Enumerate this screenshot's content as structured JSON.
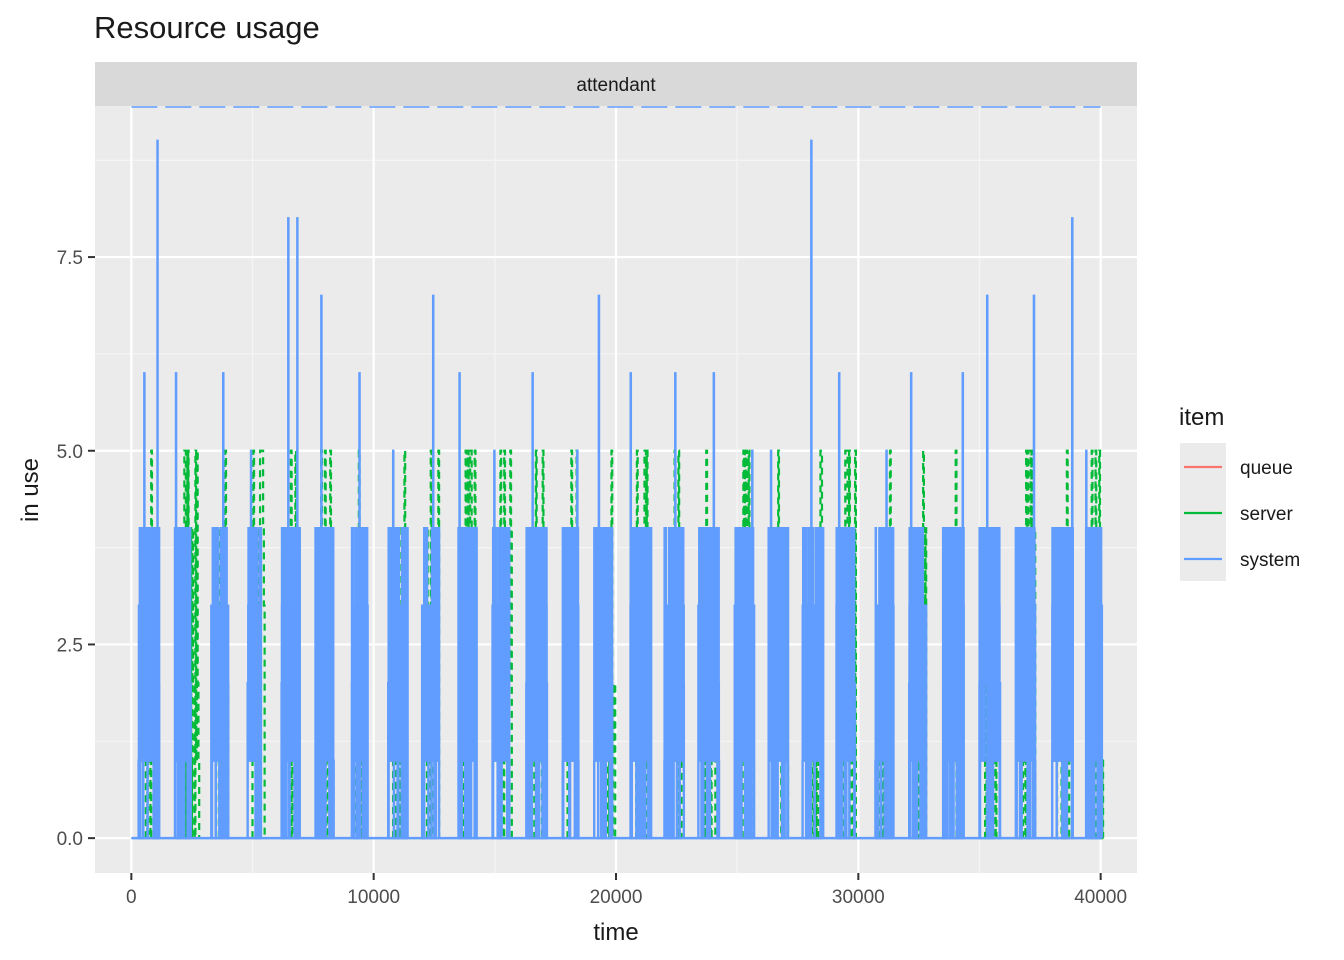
{
  "chart_data": {
    "type": "line",
    "title": "Resource usage",
    "facet_label": "attendant",
    "xlabel": "time",
    "ylabel": "in use",
    "xlim": [
      -1500,
      41500
    ],
    "ylim": [
      -0.45,
      9.45
    ],
    "x_ticks": [
      0,
      10000,
      20000,
      30000,
      40000
    ],
    "x_tick_labels": [
      "0",
      "10000",
      "20000",
      "30000",
      "40000"
    ],
    "y_ticks": [
      0,
      2.5,
      5,
      7.5
    ],
    "y_tick_labels": [
      "0.0",
      "2.5",
      "5.0",
      "7.5"
    ],
    "legend_title": "item",
    "legend_position": "right",
    "grid": true,
    "reference_lines": {
      "server_capacity": 5,
      "system_limit": "Inf"
    },
    "series": [
      {
        "name": "queue",
        "color": "#F8766D",
        "values": []
      },
      {
        "name": "server",
        "color": "#00BA38",
        "style": "dashed",
        "bursts": [
          {
            "x": 600,
            "peak": 5
          },
          {
            "x": 2000,
            "peak": 5
          },
          {
            "x": 2300,
            "peak": 5
          },
          {
            "x": 3500,
            "peak": 5
          },
          {
            "x": 5000,
            "peak": 5
          },
          {
            "x": 6300,
            "peak": 5
          },
          {
            "x": 7800,
            "peak": 5
          },
          {
            "x": 9200,
            "peak": 5
          },
          {
            "x": 10800,
            "peak": 5
          },
          {
            "x": 12200,
            "peak": 5
          },
          {
            "x": 13700,
            "peak": 5
          },
          {
            "x": 15200,
            "peak": 5
          },
          {
            "x": 16600,
            "peak": 5
          },
          {
            "x": 18000,
            "peak": 5
          },
          {
            "x": 19500,
            "peak": 5
          },
          {
            "x": 20800,
            "peak": 5
          },
          {
            "x": 22200,
            "peak": 5
          },
          {
            "x": 23600,
            "peak": 5
          },
          {
            "x": 25100,
            "peak": 5
          },
          {
            "x": 26600,
            "peak": 5
          },
          {
            "x": 28000,
            "peak": 5
          },
          {
            "x": 29400,
            "peak": 5
          },
          {
            "x": 30900,
            "peak": 5
          },
          {
            "x": 32300,
            "peak": 5
          },
          {
            "x": 33800,
            "peak": 5
          },
          {
            "x": 35200,
            "peak": 5
          },
          {
            "x": 36800,
            "peak": 5
          },
          {
            "x": 38200,
            "peak": 5
          },
          {
            "x": 39600,
            "peak": 5
          }
        ]
      },
      {
        "name": "system",
        "color": "#619CFF",
        "bursts": [
          {
            "x": 300,
            "w": 800,
            "peak": 6
          },
          {
            "x": 1000,
            "w": 150,
            "peak": 9
          },
          {
            "x": 1800,
            "w": 650,
            "peak": 6
          },
          {
            "x": 3300,
            "w": 700,
            "peak": 6
          },
          {
            "x": 4800,
            "w": 550,
            "peak": 5
          },
          {
            "x": 6200,
            "w": 700,
            "peak": 8
          },
          {
            "x": 6800,
            "w": 150,
            "peak": 8
          },
          {
            "x": 7600,
            "w": 750,
            "peak": 7
          },
          {
            "x": 9100,
            "w": 650,
            "peak": 6
          },
          {
            "x": 10600,
            "w": 800,
            "peak": 5
          },
          {
            "x": 12000,
            "w": 700,
            "peak": 7
          },
          {
            "x": 13500,
            "w": 750,
            "peak": 6
          },
          {
            "x": 14900,
            "w": 700,
            "peak": 5
          },
          {
            "x": 16300,
            "w": 850,
            "peak": 6
          },
          {
            "x": 17800,
            "w": 650,
            "peak": 5
          },
          {
            "x": 19100,
            "w": 750,
            "peak": 7
          },
          {
            "x": 20600,
            "w": 850,
            "peak": 6
          },
          {
            "x": 22000,
            "w": 800,
            "peak": 6
          },
          {
            "x": 23400,
            "w": 850,
            "peak": 6
          },
          {
            "x": 24900,
            "w": 800,
            "peak": 5
          },
          {
            "x": 26300,
            "w": 800,
            "peak": 5
          },
          {
            "x": 27700,
            "w": 850,
            "peak": 9
          },
          {
            "x": 29100,
            "w": 750,
            "peak": 6
          },
          {
            "x": 30700,
            "w": 750,
            "peak": 5
          },
          {
            "x": 32100,
            "w": 700,
            "peak": 6
          },
          {
            "x": 33500,
            "w": 850,
            "peak": 6
          },
          {
            "x": 35000,
            "w": 850,
            "peak": 7
          },
          {
            "x": 36500,
            "w": 800,
            "peak": 7
          },
          {
            "x": 38000,
            "w": 850,
            "peak": 8
          },
          {
            "x": 39400,
            "w": 650,
            "peak": 5
          }
        ]
      }
    ]
  }
}
